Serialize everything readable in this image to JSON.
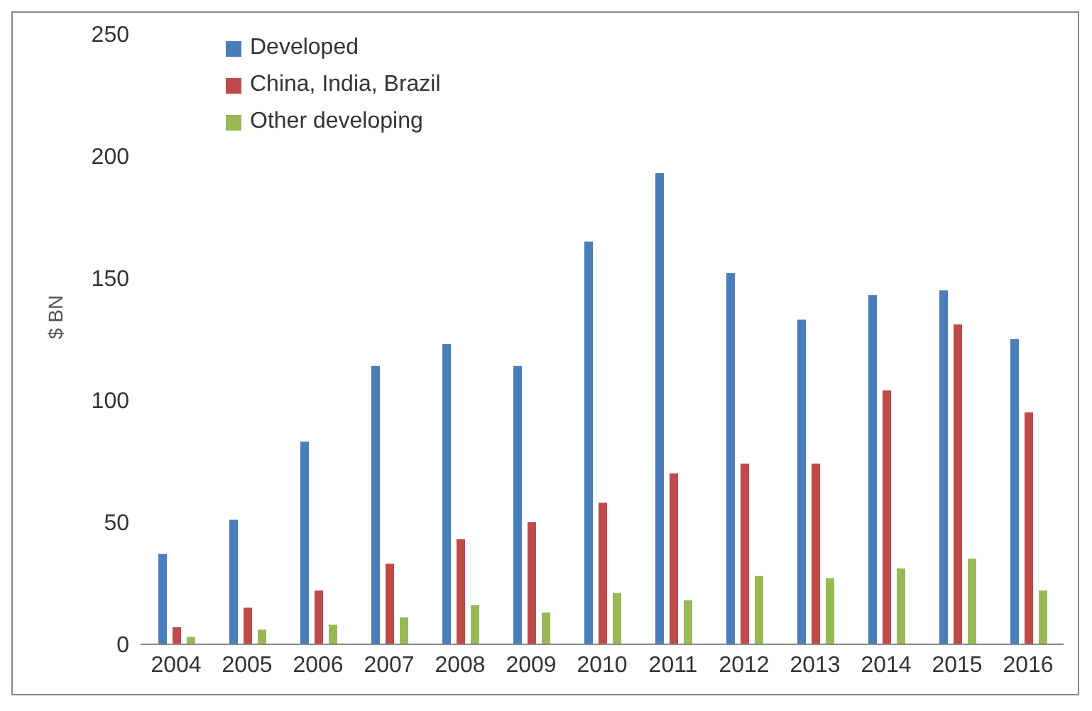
{
  "chart_data": {
    "type": "bar",
    "ylabel": "$ BN",
    "categories": [
      "2004",
      "2005",
      "2006",
      "2007",
      "2008",
      "2009",
      "2010",
      "2011",
      "2012",
      "2013",
      "2014",
      "2015",
      "2016"
    ],
    "series": [
      {
        "name": "Developed",
        "color": "#4a7ebb",
        "values": [
          37,
          51,
          83,
          114,
          123,
          114,
          165,
          193,
          152,
          133,
          143,
          145,
          125
        ]
      },
      {
        "name": "China, India, Brazil",
        "color": "#be4b48",
        "values": [
          7,
          15,
          22,
          33,
          43,
          50,
          58,
          70,
          74,
          74,
          104,
          131,
          95
        ]
      },
      {
        "name": "Other developing",
        "color": "#98b954",
        "values": [
          3,
          6,
          8,
          11,
          16,
          13,
          21,
          18,
          28,
          27,
          31,
          35,
          22
        ]
      }
    ],
    "ylim": [
      0,
      250
    ],
    "yticks": [
      0,
      50,
      100,
      150,
      200,
      250
    ],
    "grid": false,
    "legend": "top left"
  }
}
